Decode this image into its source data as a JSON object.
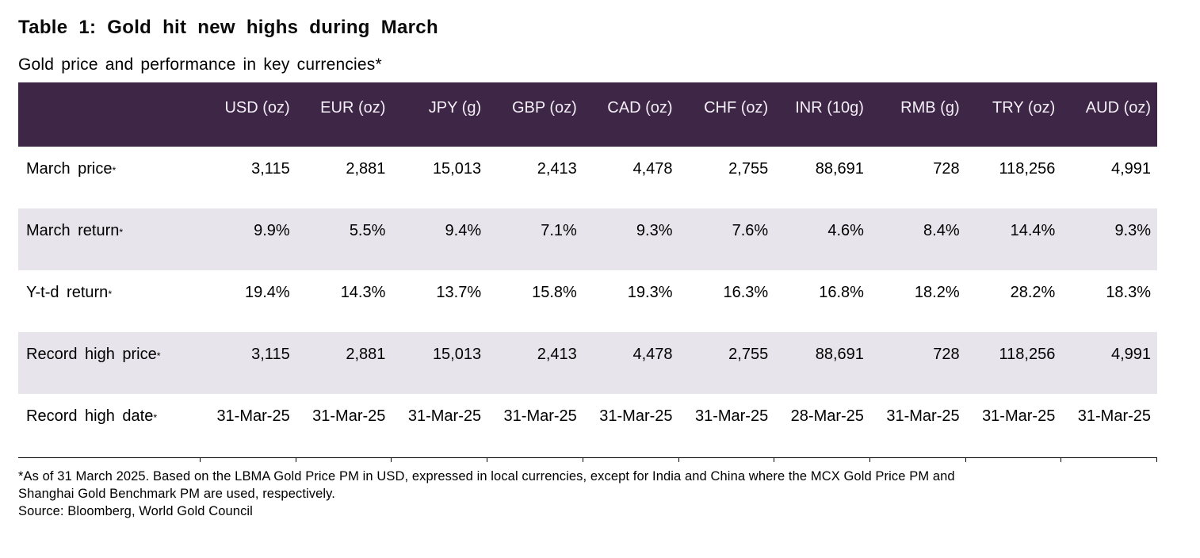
{
  "title": "Table 1: Gold hit new highs during March",
  "subtitle": "Gold price and performance in key currencies*",
  "chart_data": {
    "type": "table",
    "title": "Table 1: Gold hit new highs during March",
    "subtitle": "Gold price and performance in key currencies*",
    "columns": [
      "USD (oz)",
      "EUR (oz)",
      "JPY (g)",
      "GBP (oz)",
      "CAD (oz)",
      "CHF (oz)",
      "INR (10g)",
      "RMB (g)",
      "TRY (oz)",
      "AUD (oz)"
    ],
    "rows": [
      {
        "label": "March price",
        "footmark": "*",
        "values": [
          "3,115",
          "2,881",
          "15,013",
          "2,413",
          "4,478",
          "2,755",
          "88,691",
          "728",
          "118,256",
          "4,991"
        ]
      },
      {
        "label": "March return",
        "footmark": "*",
        "values": [
          "9.9%",
          "5.5%",
          "9.4%",
          "7.1%",
          "9.3%",
          "7.6%",
          "4.6%",
          "8.4%",
          "14.4%",
          "9.3%"
        ]
      },
      {
        "label": "Y-t-d return",
        "footmark": "*",
        "values": [
          "19.4%",
          "14.3%",
          "13.7%",
          "15.8%",
          "19.3%",
          "16.3%",
          "16.8%",
          "18.2%",
          "28.2%",
          "18.3%"
        ]
      },
      {
        "label": "Record high price",
        "footmark": "*",
        "values": [
          "3,115",
          "2,881",
          "15,013",
          "2,413",
          "4,478",
          "2,755",
          "88,691",
          "728",
          "118,256",
          "4,991"
        ]
      },
      {
        "label": "Record high date",
        "footmark": "*",
        "values": [
          "31-Mar-25",
          "31-Mar-25",
          "31-Mar-25",
          "31-Mar-25",
          "31-Mar-25",
          "31-Mar-25",
          "28-Mar-25",
          "31-Mar-25",
          "31-Mar-25",
          "31-Mar-25"
        ]
      }
    ]
  },
  "footnotes": {
    "note_line1": "*As of 31 March 2025. Based on the LBMA Gold Price PM in USD, expressed in local currencies, except for India and China where the MCX Gold Price PM and",
    "note_line2": "Shanghai Gold Benchmark PM are used, respectively.",
    "source": "Source: Bloomberg, World Gold Council"
  },
  "colors": {
    "header_bg": "#3e2647",
    "header_text": "#f3eef5",
    "alt_row_bg": "#e8e4eb",
    "axis_rule": "#000000"
  }
}
